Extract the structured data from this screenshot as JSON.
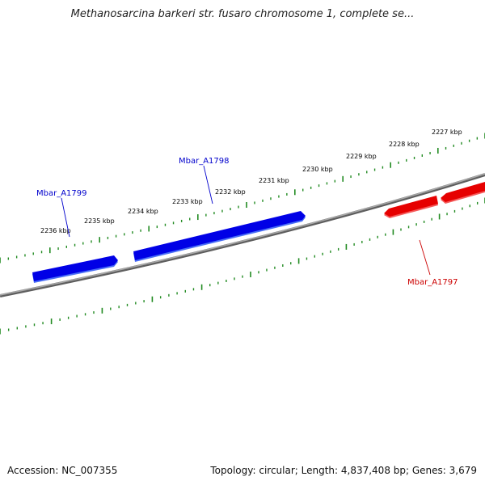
{
  "title": "Methanosarcina barkeri str. fusaro chromosome 1, complete se...",
  "footer": {
    "accession": "Accession: NC_007355",
    "topology": "Topology: circular; Length: 4,837,408 bp; Genes: 3,679"
  },
  "colors": {
    "forward_strand": "#0000ee",
    "reverse_strand": "#ee0000",
    "backbone": "#808080",
    "ruler": "#228b22"
  },
  "ruler_labels": [
    "2236 kbp",
    "2235 kbp",
    "2234 kbp",
    "2233 kbp",
    "2232 kbp",
    "2231 kbp",
    "2230 kbp",
    "2229 kbp",
    "2228 kbp",
    "2227 kbp"
  ],
  "genes": [
    {
      "name": "Mbar_A1799",
      "strand": "forward"
    },
    {
      "name": "Mbar_A1798",
      "strand": "forward"
    },
    {
      "name": "Mbar_A1797",
      "strand": "reverse"
    },
    {
      "name": "",
      "strand": "reverse"
    }
  ]
}
